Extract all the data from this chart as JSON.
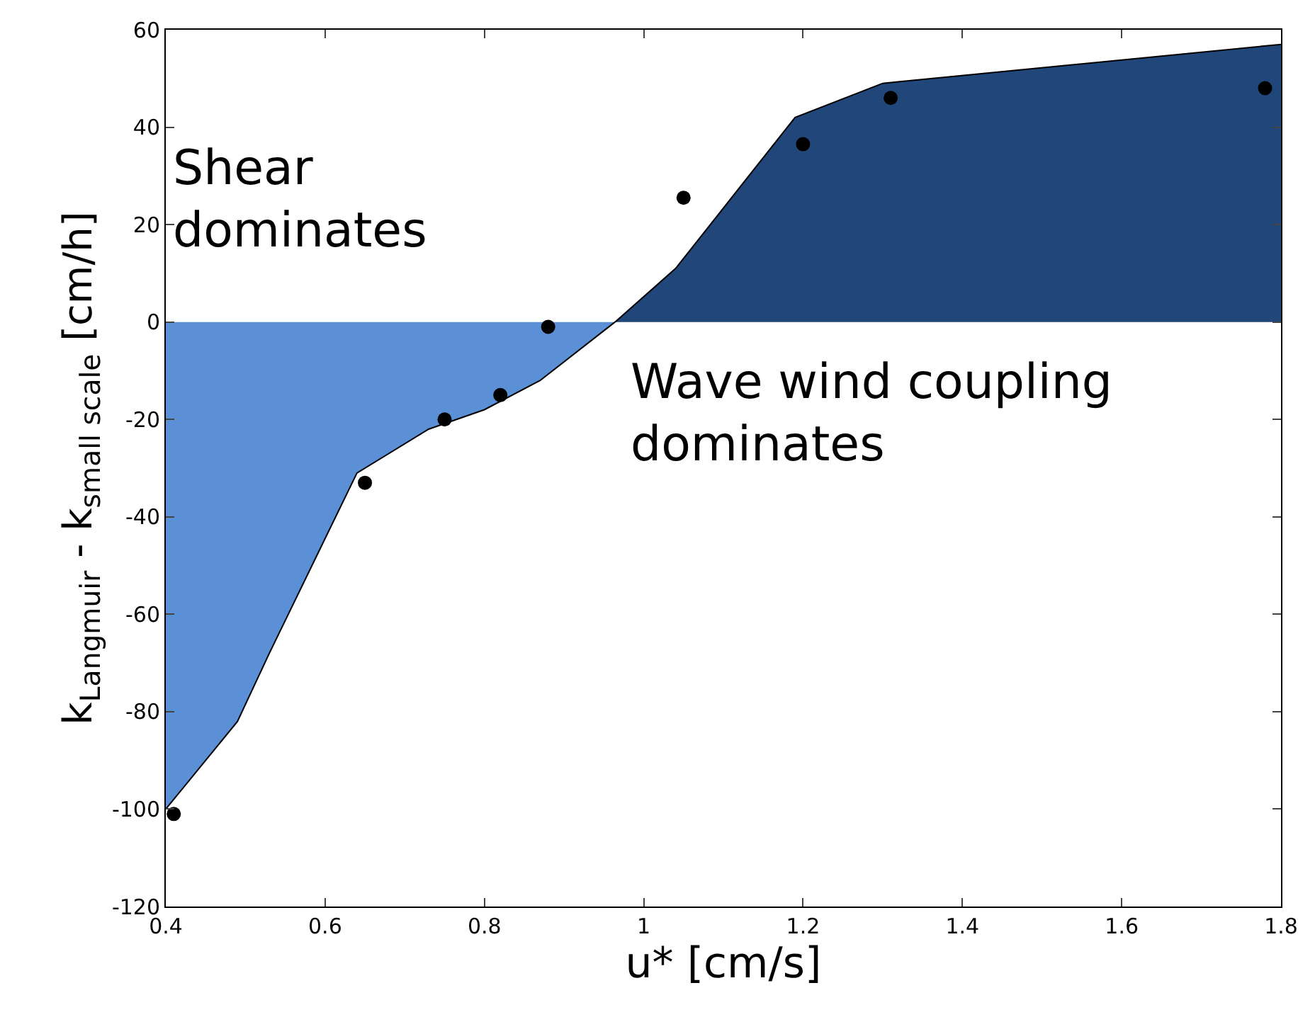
{
  "chart_data": {
    "type": "area",
    "xlabel": "u* [cm/s]",
    "ylabel": "k$_{Langmuir}$ - k$_{small scale}$ [cm/h]",
    "xlim": [
      0.4,
      1.8
    ],
    "xticks": [
      0.4,
      0.6,
      0.8,
      1,
      1.2,
      1.4,
      1.6,
      1.8
    ],
    "ylim": [
      -120,
      60
    ],
    "yticks": [
      -120,
      -100,
      -80,
      -60,
      -40,
      -20,
      0,
      20,
      40,
      60
    ],
    "annotations": [
      "Shear\ndominates",
      "Wave wind coupling\ndominates"
    ],
    "series": [
      {
        "color": "#5b8fd6",
        "x": [
          0.4,
          0.49,
          0.53,
          0.64,
          0.73,
          0.8,
          0.87,
          0.964
        ],
        "values": [
          -100,
          -82,
          -68,
          -31,
          -22,
          -18,
          -12,
          0
        ]
      },
      {
        "color": "#21467a",
        "x": [
          0.964,
          1.04,
          1.19,
          1.3,
          1.8
        ],
        "values": [
          0,
          11,
          42,
          49,
          57
        ]
      },
      {
        "type": "scatter",
        "color": "#000000",
        "marker": "circle",
        "x": [
          0.41,
          0.65,
          0.75,
          0.82,
          0.88,
          1.05,
          1.2,
          1.31,
          1.78
        ],
        "values": [
          -101,
          -33,
          -20,
          -15,
          -1,
          25.5,
          36.5,
          46,
          48
        ]
      }
    ]
  }
}
